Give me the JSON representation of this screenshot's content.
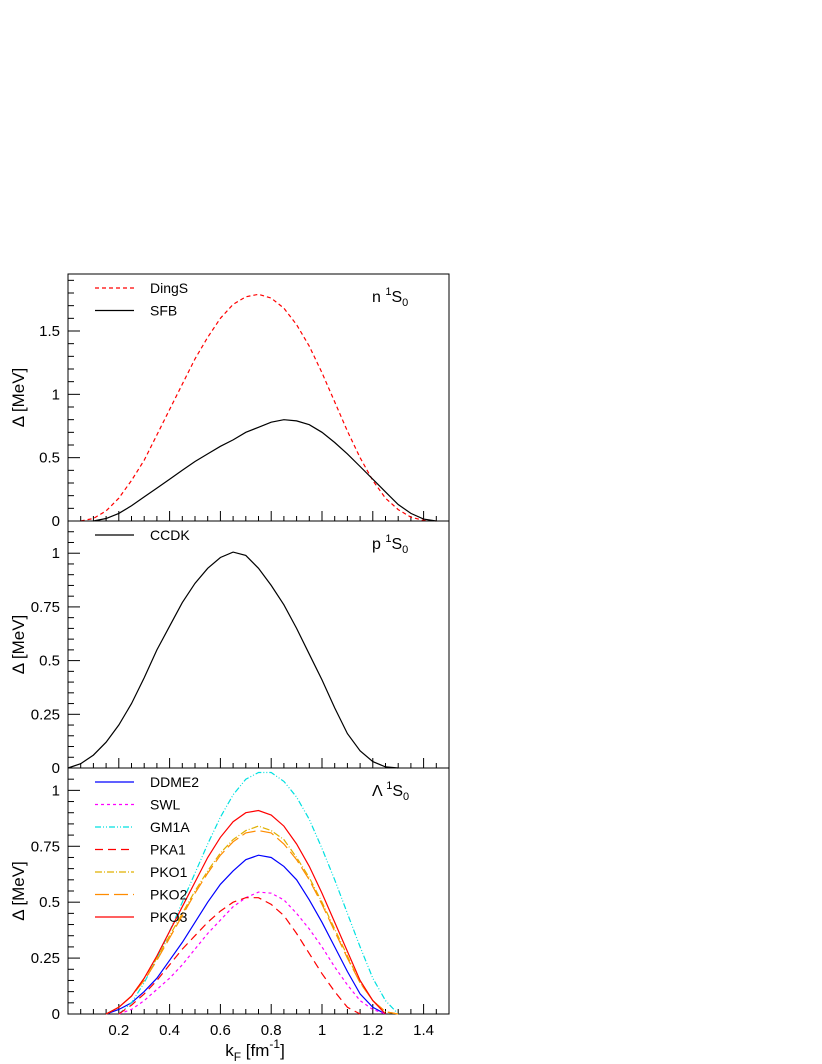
{
  "chart_data": [
    {
      "type": "line",
      "annotation": "n ¹S₀",
      "annotation_main": "n",
      "annotation_sup": "1",
      "annotation_tail": "S",
      "annotation_sub": "0",
      "ylabel": "Δ [MeV]",
      "xlabel": "",
      "xlim": [
        0,
        1.5
      ],
      "ylim": [
        0,
        1.95
      ],
      "yticks": [
        0,
        0.5,
        1,
        1.5
      ],
      "ytick_labels": [
        "0",
        "0.5",
        "1",
        "1.5"
      ],
      "grid": false,
      "legend_position": "top-left",
      "series": [
        {
          "name": "DingS",
          "color": "#ff0000",
          "dash": "4,3",
          "x": [
            0.05,
            0.1,
            0.15,
            0.2,
            0.25,
            0.3,
            0.35,
            0.4,
            0.45,
            0.5,
            0.55,
            0.6,
            0.65,
            0.7,
            0.75,
            0.8,
            0.85,
            0.9,
            0.95,
            1.0,
            1.05,
            1.1,
            1.15,
            1.2,
            1.25,
            1.3,
            1.35,
            1.4,
            1.45
          ],
          "y": [
            0.0,
            0.02,
            0.08,
            0.18,
            0.32,
            0.48,
            0.68,
            0.88,
            1.08,
            1.28,
            1.45,
            1.6,
            1.71,
            1.77,
            1.79,
            1.76,
            1.68,
            1.55,
            1.38,
            1.17,
            0.94,
            0.71,
            0.5,
            0.32,
            0.18,
            0.09,
            0.03,
            0.005,
            0.0
          ]
        },
        {
          "name": "SFB",
          "color": "#000000",
          "dash": "",
          "x": [
            0.1,
            0.15,
            0.2,
            0.25,
            0.3,
            0.35,
            0.4,
            0.45,
            0.5,
            0.55,
            0.6,
            0.65,
            0.7,
            0.75,
            0.8,
            0.85,
            0.9,
            0.95,
            1.0,
            1.05,
            1.1,
            1.15,
            1.2,
            1.25,
            1.3,
            1.35,
            1.4,
            1.45
          ],
          "y": [
            0.0,
            0.02,
            0.06,
            0.12,
            0.19,
            0.26,
            0.33,
            0.4,
            0.47,
            0.53,
            0.59,
            0.64,
            0.7,
            0.74,
            0.78,
            0.8,
            0.79,
            0.76,
            0.7,
            0.62,
            0.53,
            0.43,
            0.33,
            0.23,
            0.13,
            0.06,
            0.015,
            0.0
          ]
        }
      ]
    },
    {
      "type": "line",
      "annotation": "p ¹S₀",
      "annotation_main": "p",
      "annotation_sup": "1",
      "annotation_tail": "S",
      "annotation_sub": "0",
      "ylabel": "Δ [MeV]",
      "xlabel": "",
      "xlim": [
        0,
        1.5
      ],
      "ylim": [
        0,
        1.15
      ],
      "yticks": [
        0,
        0.25,
        0.5,
        0.75,
        1
      ],
      "ytick_labels": [
        "0",
        "0.25",
        "0.5",
        "0.75",
        "1"
      ],
      "grid": false,
      "legend_position": "top-left",
      "series": [
        {
          "name": "CCDK",
          "color": "#000000",
          "dash": "",
          "x": [
            0.0,
            0.05,
            0.1,
            0.15,
            0.2,
            0.25,
            0.3,
            0.35,
            0.4,
            0.45,
            0.5,
            0.55,
            0.6,
            0.65,
            0.7,
            0.75,
            0.8,
            0.85,
            0.9,
            0.95,
            1.0,
            1.05,
            1.1,
            1.15,
            1.2,
            1.25,
            1.3
          ],
          "y": [
            0.0,
            0.02,
            0.06,
            0.12,
            0.2,
            0.3,
            0.42,
            0.55,
            0.66,
            0.77,
            0.86,
            0.93,
            0.98,
            1.005,
            0.99,
            0.93,
            0.85,
            0.76,
            0.65,
            0.53,
            0.41,
            0.28,
            0.16,
            0.08,
            0.03,
            0.005,
            0.0
          ]
        }
      ]
    },
    {
      "type": "line",
      "annotation": "Λ ¹S₀",
      "annotation_main": "Λ",
      "annotation_sup": "1",
      "annotation_tail": "S",
      "annotation_sub": "0",
      "ylabel": "Δ [MeV]",
      "xlabel": "k_F [fm^-1]",
      "xlabel_main": "k",
      "xlabel_sub": "F",
      "xlabel_unit": "[fm",
      "xlabel_sup": "-1",
      "xlabel_close": "]",
      "xlim": [
        0,
        1.5
      ],
      "ylim": [
        0,
        1.1
      ],
      "xticks": [
        0.2,
        0.4,
        0.6,
        0.8,
        1,
        1.2,
        1.4
      ],
      "xtick_labels": [
        "0.2",
        "0.4",
        "0.6",
        "0.8",
        "1",
        "1.2",
        "1.4"
      ],
      "yticks": [
        0,
        0.25,
        0.5,
        0.75,
        1
      ],
      "ytick_labels": [
        "0",
        "0.25",
        "0.5",
        "0.75",
        "1"
      ],
      "grid": false,
      "legend_position": "top-left",
      "series": [
        {
          "name": "DDME2",
          "color": "#0000ff",
          "dash": "",
          "x": [
            0.15,
            0.2,
            0.25,
            0.3,
            0.35,
            0.4,
            0.45,
            0.5,
            0.55,
            0.6,
            0.65,
            0.7,
            0.75,
            0.8,
            0.85,
            0.9,
            0.95,
            1.0,
            1.05,
            1.1,
            1.15,
            1.2,
            1.25
          ],
          "y": [
            0.0,
            0.02,
            0.05,
            0.1,
            0.16,
            0.24,
            0.32,
            0.41,
            0.5,
            0.58,
            0.64,
            0.69,
            0.71,
            0.7,
            0.66,
            0.6,
            0.51,
            0.41,
            0.3,
            0.19,
            0.09,
            0.03,
            0.0
          ]
        },
        {
          "name": "SWL",
          "color": "#ff00ff",
          "dash": "3,3",
          "x": [
            0.2,
            0.25,
            0.3,
            0.35,
            0.4,
            0.45,
            0.5,
            0.55,
            0.6,
            0.65,
            0.7,
            0.75,
            0.8,
            0.85,
            0.9,
            0.95,
            1.0,
            1.05,
            1.1,
            1.15,
            1.2,
            1.25
          ],
          "y": [
            0.0,
            0.02,
            0.06,
            0.11,
            0.16,
            0.22,
            0.29,
            0.36,
            0.42,
            0.48,
            0.52,
            0.545,
            0.54,
            0.51,
            0.45,
            0.38,
            0.3,
            0.21,
            0.13,
            0.06,
            0.02,
            0.0
          ]
        },
        {
          "name": "GM1A",
          "color": "#00e0e0",
          "dash": "6,2,1,2,1,2",
          "x": [
            0.2,
            0.25,
            0.3,
            0.35,
            0.4,
            0.45,
            0.5,
            0.55,
            0.6,
            0.65,
            0.7,
            0.75,
            0.8,
            0.85,
            0.9,
            0.95,
            1.0,
            1.05,
            1.1,
            1.15,
            1.2,
            1.25,
            1.3
          ],
          "y": [
            0.0,
            0.05,
            0.14,
            0.25,
            0.37,
            0.5,
            0.63,
            0.76,
            0.88,
            0.98,
            1.05,
            1.08,
            1.08,
            1.04,
            0.97,
            0.87,
            0.74,
            0.6,
            0.45,
            0.3,
            0.16,
            0.06,
            0.0
          ]
        },
        {
          "name": "PKA1",
          "color": "#ff0000",
          "dash": "8,5",
          "x": [
            0.2,
            0.25,
            0.3,
            0.35,
            0.4,
            0.45,
            0.5,
            0.55,
            0.6,
            0.65,
            0.7,
            0.75,
            0.8,
            0.85,
            0.9,
            0.95,
            1.0,
            1.05,
            1.1,
            1.15
          ],
          "y": [
            0.0,
            0.04,
            0.09,
            0.15,
            0.22,
            0.29,
            0.35,
            0.41,
            0.46,
            0.5,
            0.52,
            0.52,
            0.49,
            0.44,
            0.36,
            0.27,
            0.18,
            0.1,
            0.03,
            0.0
          ]
        },
        {
          "name": "PKO1",
          "color": "#e0b000",
          "dash": "7,2,1,2",
          "x": [
            0.15,
            0.2,
            0.25,
            0.3,
            0.35,
            0.4,
            0.45,
            0.5,
            0.55,
            0.6,
            0.65,
            0.7,
            0.75,
            0.8,
            0.85,
            0.9,
            0.95,
            1.0,
            1.05,
            1.1,
            1.15,
            1.2,
            1.25,
            1.3
          ],
          "y": [
            0.0,
            0.03,
            0.08,
            0.16,
            0.25,
            0.35,
            0.45,
            0.55,
            0.64,
            0.72,
            0.78,
            0.82,
            0.84,
            0.82,
            0.78,
            0.7,
            0.61,
            0.5,
            0.38,
            0.26,
            0.14,
            0.06,
            0.01,
            0.0
          ]
        },
        {
          "name": "PKO2",
          "color": "#ff8c00",
          "dash": "14,5",
          "x": [
            0.15,
            0.2,
            0.25,
            0.3,
            0.35,
            0.4,
            0.45,
            0.5,
            0.55,
            0.6,
            0.65,
            0.7,
            0.75,
            0.8,
            0.85,
            0.9,
            0.95,
            1.0,
            1.05,
            1.1,
            1.15,
            1.2,
            1.25,
            1.3
          ],
          "y": [
            0.0,
            0.03,
            0.08,
            0.15,
            0.24,
            0.34,
            0.44,
            0.54,
            0.63,
            0.71,
            0.77,
            0.81,
            0.82,
            0.81,
            0.76,
            0.69,
            0.6,
            0.49,
            0.37,
            0.25,
            0.14,
            0.06,
            0.01,
            0.0
          ]
        },
        {
          "name": "PKO3",
          "color": "#ff0000",
          "dash": "",
          "x": [
            0.15,
            0.2,
            0.25,
            0.3,
            0.35,
            0.4,
            0.45,
            0.5,
            0.55,
            0.6,
            0.65,
            0.7,
            0.75,
            0.8,
            0.85,
            0.9,
            0.95,
            1.0,
            1.05,
            1.1,
            1.15,
            1.2,
            1.25
          ],
          "y": [
            0.0,
            0.03,
            0.08,
            0.16,
            0.26,
            0.37,
            0.48,
            0.59,
            0.7,
            0.79,
            0.86,
            0.9,
            0.91,
            0.89,
            0.84,
            0.76,
            0.66,
            0.54,
            0.41,
            0.28,
            0.15,
            0.06,
            0.0
          ]
        }
      ]
    }
  ]
}
